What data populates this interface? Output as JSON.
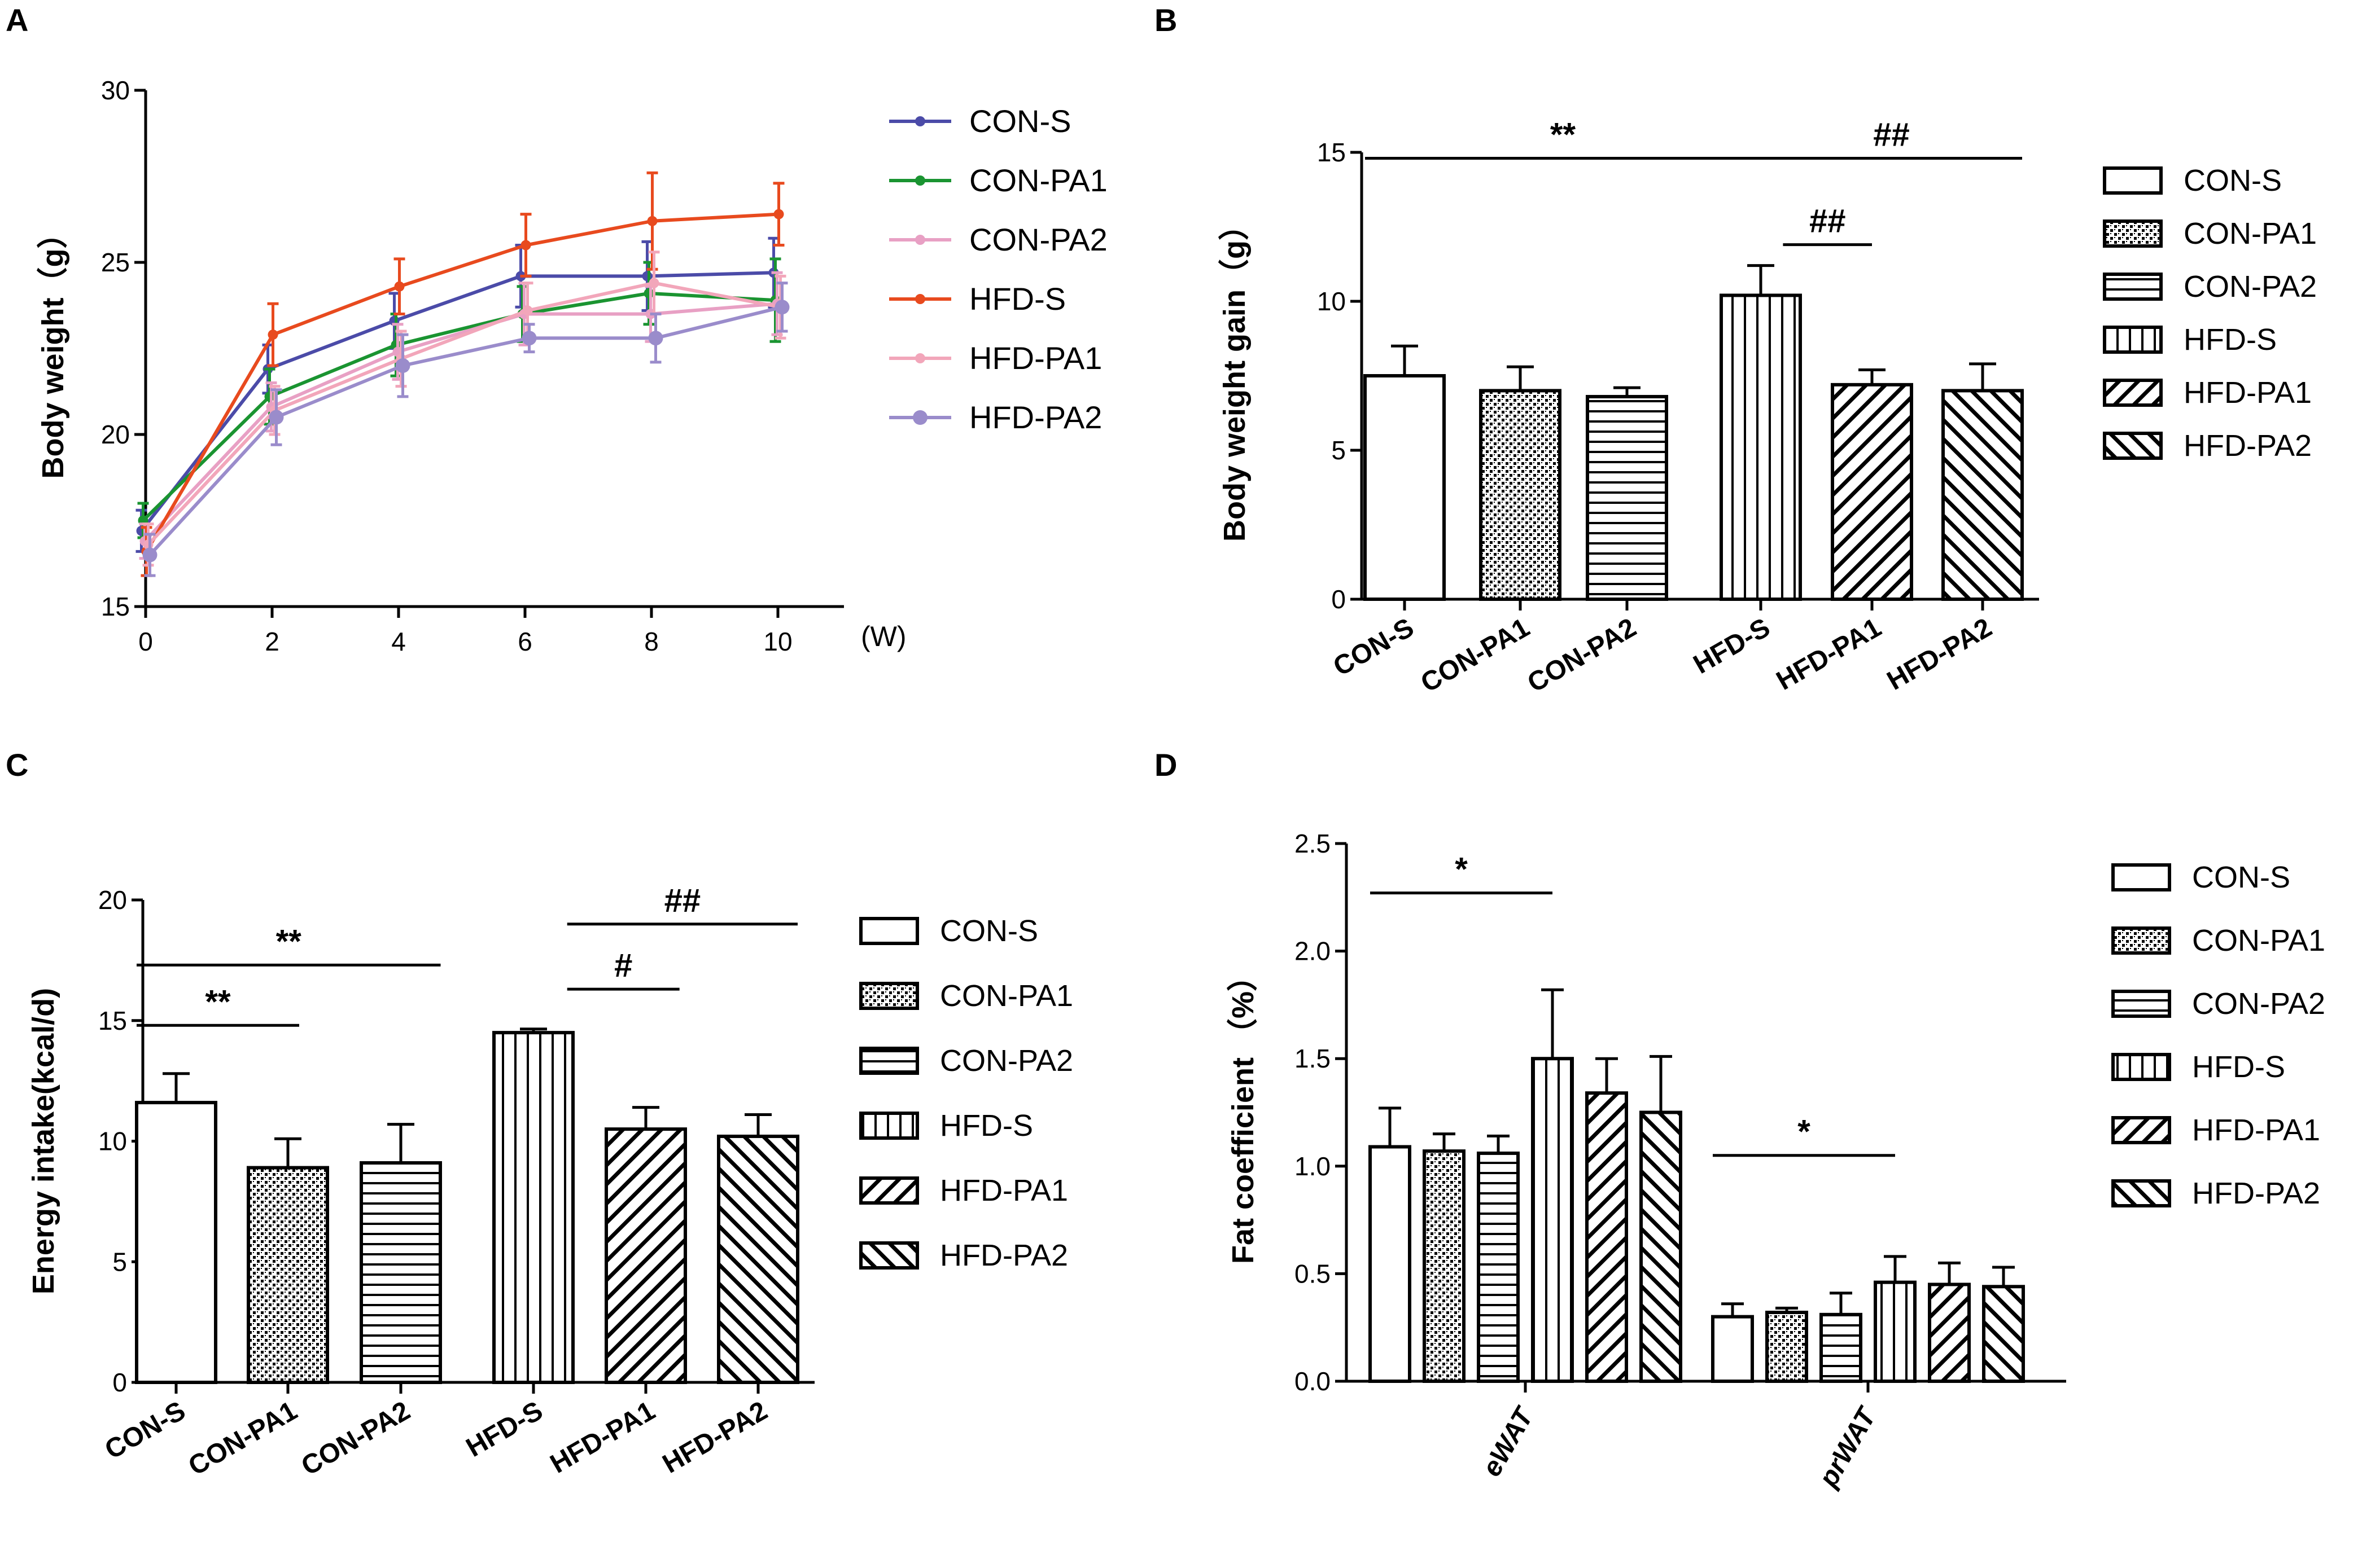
{
  "figure": {
    "panels": [
      {
        "label": "A"
      },
      {
        "label": "B"
      },
      {
        "label": "C"
      },
      {
        "label": "D"
      }
    ]
  },
  "colors": {
    "CON-S": "#4b4ba8",
    "CON-PA1": "#1a9431",
    "CON-PA2": "#e8a0c4",
    "HFD-S": "#e84a1e",
    "HFD-PA1": "#f2a6ba",
    "HFD-PA2": "#9a8ccb",
    "axis": "#000000"
  },
  "chart_data": [
    {
      "type": "line",
      "panel": "A",
      "title": "",
      "xlabel": "(W)",
      "ylabel": "Body weight（g）",
      "x": [
        0,
        2,
        4,
        6,
        8,
        10
      ],
      "xticks": [
        "0",
        "2",
        "4",
        "6",
        "8",
        "10"
      ],
      "yticks": [
        "15",
        "20",
        "25",
        "30"
      ],
      "xlim": [
        0,
        11
      ],
      "ylim": [
        15,
        30
      ],
      "grid": false,
      "legend": "right",
      "series": [
        {
          "name": "CON-S",
          "values": [
            17.2,
            21.9,
            23.3,
            24.6,
            24.6,
            24.7
          ],
          "err": [
            0.6,
            0.7,
            0.8,
            0.9,
            1.0,
            1.0
          ]
        },
        {
          "name": "CON-PA1",
          "values": [
            17.5,
            21.1,
            22.6,
            23.5,
            24.1,
            23.9
          ],
          "err": [
            0.5,
            0.8,
            0.9,
            0.8,
            0.9,
            1.2
          ]
        },
        {
          "name": "CON-PA2",
          "values": [
            16.9,
            20.8,
            22.4,
            23.5,
            23.5,
            23.8
          ],
          "err": [
            0.5,
            0.7,
            0.8,
            0.9,
            0.8,
            0.9
          ]
        },
        {
          "name": "HFD-S",
          "values": [
            16.6,
            22.9,
            24.3,
            25.5,
            26.2,
            26.4
          ],
          "err": [
            0.7,
            0.9,
            0.8,
            0.9,
            1.4,
            0.9
          ]
        },
        {
          "name": "HFD-PA1",
          "values": [
            16.8,
            20.7,
            22.2,
            23.6,
            24.4,
            23.7
          ],
          "err": [
            0.6,
            0.7,
            0.8,
            0.8,
            0.9,
            0.9
          ]
        },
        {
          "name": "HFD-PA2",
          "values": [
            16.5,
            20.5,
            22.0,
            22.8,
            22.8,
            23.7
          ],
          "err": [
            0.6,
            0.8,
            0.9,
            0.4,
            0.7,
            0.7
          ]
        }
      ]
    },
    {
      "type": "bar",
      "panel": "B",
      "title": "",
      "xlabel": "",
      "ylabel": "Body weight gain（g）",
      "categories": [
        "CON-S",
        "CON-PA1",
        "CON-PA2",
        "HFD-S",
        "HFD-PA1",
        "HFD-PA2"
      ],
      "values": [
        7.5,
        7.0,
        6.8,
        10.2,
        7.2,
        7.0
      ],
      "err": [
        1.0,
        0.8,
        0.3,
        1.0,
        0.5,
        0.9
      ],
      "yticks": [
        "0",
        "5",
        "10",
        "15"
      ],
      "ylim": [
        0,
        15
      ],
      "grid": false,
      "legend": "right",
      "annotations": [
        {
          "text": "**",
          "from": 0,
          "to": 3,
          "y": 14.8
        },
        {
          "text": "##",
          "from": 3,
          "to": 5,
          "y": 14.8
        },
        {
          "text": "##",
          "from": 3.2,
          "to": 4,
          "y": 11.9
        }
      ]
    },
    {
      "type": "bar",
      "panel": "C",
      "title": "",
      "xlabel": "",
      "ylabel": "Energy intake(kcal/d)",
      "categories": [
        "CON-S",
        "CON-PA1",
        "CON-PA2",
        "HFD-S",
        "HFD-PA1",
        "HFD-PA2"
      ],
      "values": [
        11.6,
        8.9,
        9.1,
        14.5,
        10.5,
        10.2
      ],
      "err": [
        1.2,
        1.2,
        1.6,
        0.15,
        0.9,
        0.9
      ],
      "yticks": [
        "0",
        "5",
        "10",
        "15",
        "20"
      ],
      "ylim": [
        0,
        20
      ],
      "grid": false,
      "legend": "right",
      "annotations": [
        {
          "text": "**",
          "from": 0,
          "to": 2.3,
          "y": 17.3
        },
        {
          "text": "**",
          "from": 0,
          "to": 1.1,
          "y": 14.8
        },
        {
          "text": "##",
          "from": 3.3,
          "to": 5.8,
          "y": 19.0
        },
        {
          "text": "#",
          "from": 3.3,
          "to": 4.3,
          "y": 16.3
        }
      ]
    },
    {
      "type": "bar",
      "panel": "D",
      "title": "",
      "xlabel": "",
      "ylabel": "Fat coefficient （%）",
      "categories": [
        "eWAT",
        "prWAT"
      ],
      "series": [
        {
          "name": "CON-S",
          "values": [
            1.09,
            0.3
          ],
          "err": [
            0.18,
            0.06
          ]
        },
        {
          "name": "CON-PA1",
          "values": [
            1.07,
            0.32
          ],
          "err": [
            0.08,
            0.02
          ]
        },
        {
          "name": "CON-PA2",
          "values": [
            1.06,
            0.31
          ],
          "err": [
            0.08,
            0.1
          ]
        },
        {
          "name": "HFD-S",
          "values": [
            1.5,
            0.46
          ],
          "err": [
            0.32,
            0.12
          ]
        },
        {
          "name": "HFD-PA1",
          "values": [
            1.34,
            0.45
          ],
          "err": [
            0.16,
            0.1
          ]
        },
        {
          "name": "HFD-PA2",
          "values": [
            1.25,
            0.44
          ],
          "err": [
            0.26,
            0.09
          ]
        }
      ],
      "yticks": [
        "0.0",
        "0.5",
        "1.0",
        "1.5",
        "2.0",
        "2.5"
      ],
      "ylim": [
        0,
        2.5
      ],
      "grid": false,
      "legend": "right",
      "annotations": [
        {
          "text": "*",
          "group": 0,
          "from": 0,
          "to": 3,
          "y": 2.27
        },
        {
          "text": "*",
          "group": 1,
          "from": 0,
          "to": 3,
          "y": 1.05
        }
      ]
    }
  ]
}
